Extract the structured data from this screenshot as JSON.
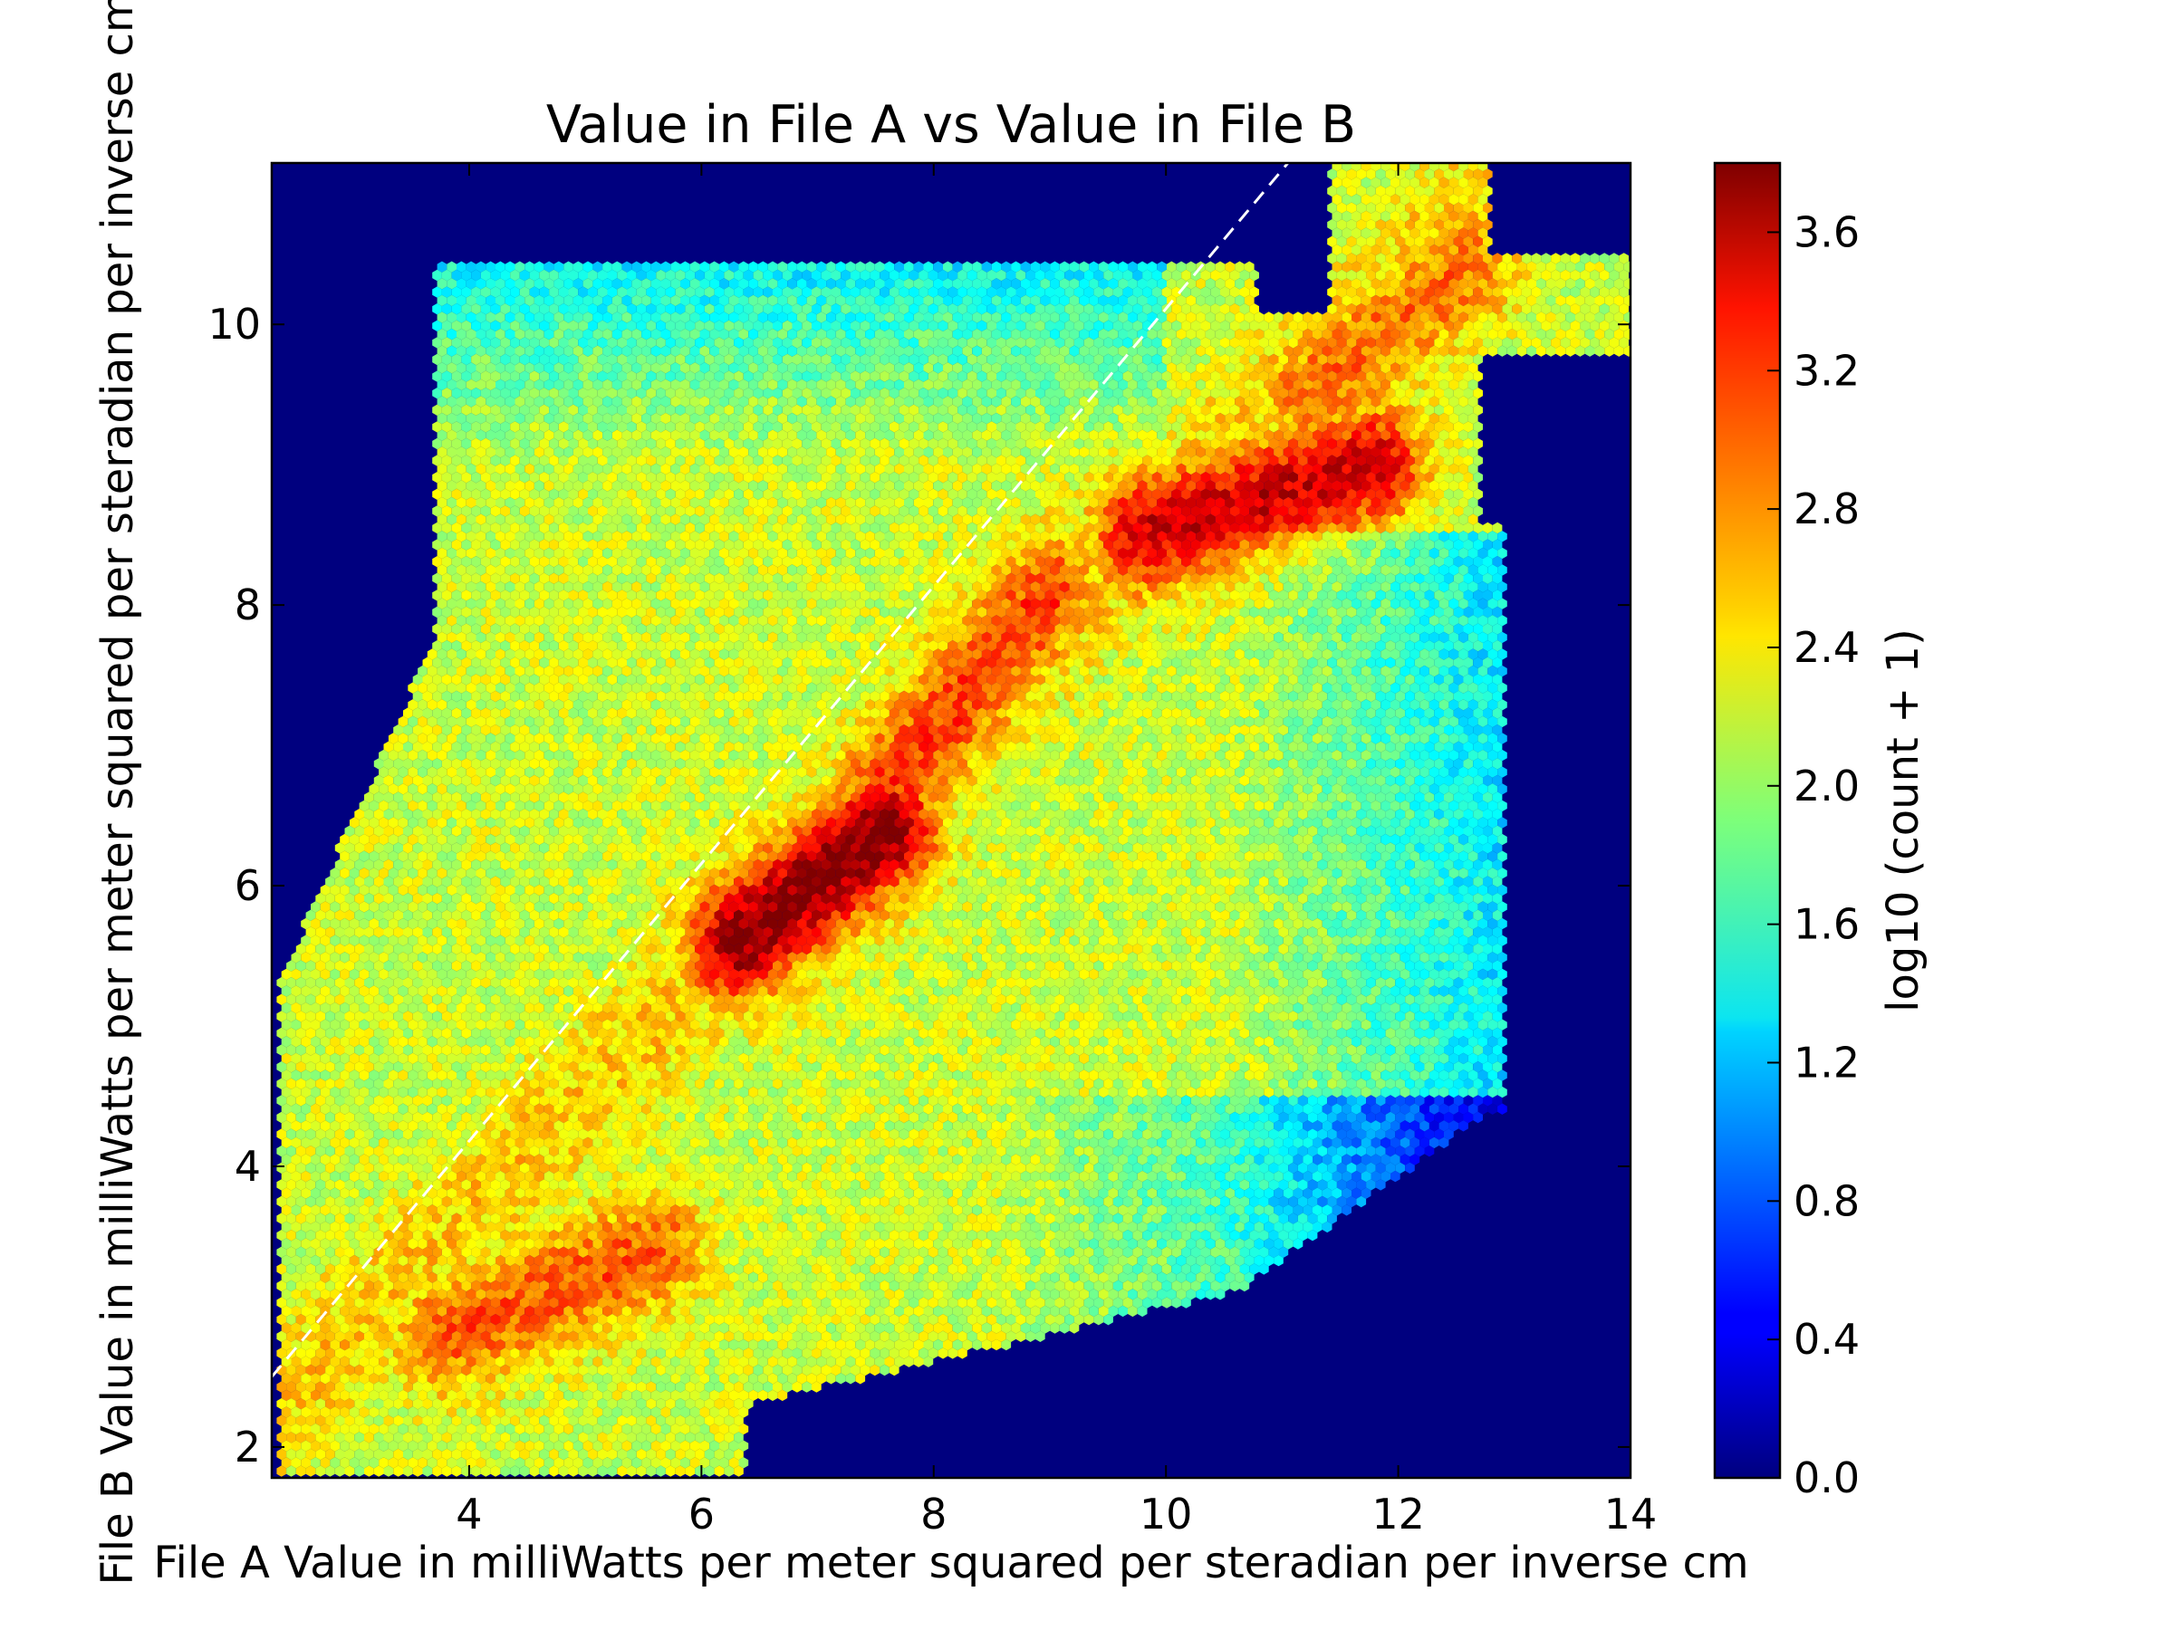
{
  "chart_data": {
    "type": "hexbin",
    "title": "Value in File A vs Value in File B",
    "xlabel": "File A Value in milliWatts per meter squared per steradian per inverse cm",
    "ylabel": "File B Value in milliWatts per meter squared per steradian per inverse cm",
    "xlim": [
      2.3,
      14.0
    ],
    "ylim": [
      1.78,
      11.15
    ],
    "xticks": [
      "4",
      "6",
      "8",
      "10",
      "12",
      "14"
    ],
    "yticks": [
      "2",
      "4",
      "6",
      "8",
      "10"
    ],
    "background_color": "#00007f",
    "reference_line": {
      "style": "dashed",
      "color": "#ffffff",
      "points": [
        [
          2.3,
          2.5
        ],
        [
          11.05,
          11.15
        ]
      ]
    },
    "density_ridges": [
      {
        "from": [
          3.8,
          2.8
        ],
        "to": [
          5.6,
          3.4
        ],
        "peak_log10": 3.0
      },
      {
        "from": [
          6.3,
          5.6
        ],
        "to": [
          7.6,
          6.4
        ],
        "peak_log10": 3.8
      },
      {
        "from": [
          7.6,
          6.7
        ],
        "to": [
          9.0,
          8.1
        ],
        "peak_log10": 3.1
      },
      {
        "from": [
          9.8,
          8.5
        ],
        "to": [
          11.8,
          9.0
        ],
        "peak_log10": 3.5
      },
      {
        "from": [
          11.2,
          9.5
        ],
        "to": [
          12.6,
          10.4
        ],
        "peak_log10": 2.9
      }
    ],
    "colorbar": {
      "label": "log10 (count + 1)",
      "range": [
        0.0,
        3.8
      ],
      "ticks": [
        "0.0",
        "0.4",
        "0.8",
        "1.2",
        "1.6",
        "2.0",
        "2.4",
        "2.8",
        "3.2",
        "3.6"
      ],
      "colormap": "jet"
    }
  }
}
